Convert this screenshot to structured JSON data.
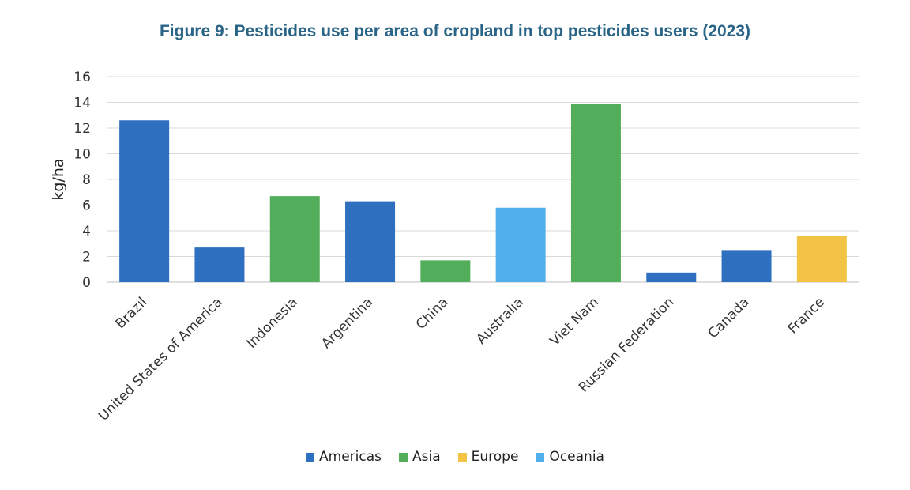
{
  "chart_data": {
    "type": "bar",
    "title": "Figure 9: Pesticides use per area of cropland in top pesticides users (2023)",
    "xlabel": "",
    "ylabel": "kg/ha",
    "ylim": [
      0,
      16
    ],
    "yticks": [
      0,
      2,
      4,
      6,
      8,
      10,
      12,
      14,
      16
    ],
    "grid": true,
    "legend_position": "bottom",
    "categories": [
      "Brazil",
      "United States of America",
      "Indonesia",
      "Argentina",
      "China",
      "Australia",
      "Viet Nam",
      "Russian Federation",
      "Canada",
      "France"
    ],
    "values": [
      12.6,
      2.7,
      6.7,
      6.3,
      1.7,
      5.8,
      13.9,
      0.75,
      2.5,
      3.6
    ],
    "regions": [
      "Americas",
      "Americas",
      "Asia",
      "Americas",
      "Asia",
      "Oceania",
      "Asia",
      "Americas",
      "Americas",
      "Europe"
    ],
    "legend": [
      {
        "name": "Americas",
        "color": "#2e6fbf"
      },
      {
        "name": "Asia",
        "color": "#52ae5a"
      },
      {
        "name": "Europe",
        "color": "#f2c344"
      },
      {
        "name": "Oceania",
        "color": "#4fb0ec"
      }
    ]
  }
}
